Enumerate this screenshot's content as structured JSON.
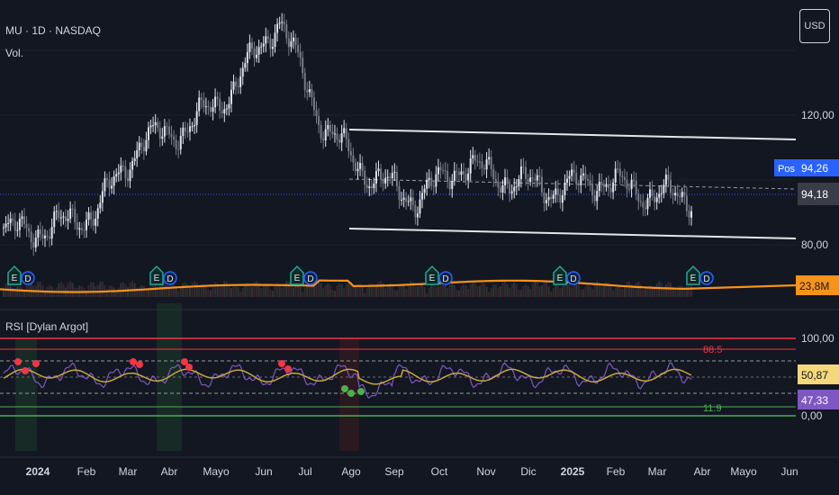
{
  "header": {
    "symbol_line": "MU · 1D · NASDAQ",
    "volume_label": "Vol.",
    "currency_button": "USD"
  },
  "price_axis": {
    "ticks": [
      "120,00",
      "80,00"
    ],
    "pos_badge": "Pos",
    "last_price": "94,26",
    "secondary_price": "94,18",
    "volume_value": "23,8M"
  },
  "rsi_pane": {
    "title": "RSI [Dylan Argot]",
    "axis_ticks": [
      "100,00",
      "0,00"
    ],
    "upper_level_label": "88.5",
    "lower_level_label": "11.9",
    "rsi_value": "50,87",
    "signal_value": "47,33"
  },
  "time_axis": {
    "labels": [
      "2024",
      "Feb",
      "Mar",
      "Abr",
      "Mayo",
      "Jun",
      "Jul",
      "Ago",
      "Sep",
      "Oct",
      "Nov",
      "Dic",
      "2025",
      "Feb",
      "Mar",
      "Abr",
      "Mayo",
      "Jun"
    ]
  },
  "earnings_markers": {
    "earnings_letter": "E",
    "dividend_letter": "D"
  },
  "colors": {
    "background": "#131722",
    "channel": "#ffffff",
    "volume_ma": "#f7931a",
    "rsi_line": "#7e57c2",
    "rsi_signal": "#c9a63a",
    "overbought": "#f23645",
    "oversold": "#4caf50",
    "price_line": "#2962ff",
    "pos_badge": "#2962ff",
    "rsi_badge": "#f5d87a",
    "signal_badge": "#7e57c2"
  },
  "chart_data": [
    {
      "type": "candlestick",
      "title": "MU · 1D · NASDAQ",
      "x_range": [
        "2024-01",
        "2025-06"
      ],
      "y_range": [
        78,
        168
      ],
      "price_levels": [
        80,
        120
      ],
      "last_price": 94.26,
      "reference_price": 94.18,
      "approx_closes": [
        {
          "date": "2023-12",
          "close": 84
        },
        {
          "date": "2024-01",
          "close": 85
        },
        {
          "date": "2024-02",
          "close": 90
        },
        {
          "date": "2024-03",
          "close": 112
        },
        {
          "date": "2024-04",
          "close": 116
        },
        {
          "date": "2024-05",
          "close": 128
        },
        {
          "date": "2024-06",
          "close": 150
        },
        {
          "date": "2024-07",
          "close": 116
        },
        {
          "date": "2024-08",
          "close": 101
        },
        {
          "date": "2024-09",
          "close": 94
        },
        {
          "date": "2024-10",
          "close": 105
        },
        {
          "date": "2024-11",
          "close": 100
        },
        {
          "date": "2024-12",
          "close": 97
        },
        {
          "date": "2025-01",
          "close": 100
        },
        {
          "date": "2025-02",
          "close": 96
        },
        {
          "date": "2025-03",
          "close": 94.26
        }
      ]
    },
    {
      "type": "line",
      "title": "RSI [Dylan Argot]",
      "y_range": [
        0,
        100
      ],
      "levels": [
        88.5,
        11.9
      ],
      "series": [
        {
          "name": "RSI",
          "last": 50.87
        },
        {
          "name": "Signal",
          "last": 47.33
        }
      ]
    }
  ]
}
